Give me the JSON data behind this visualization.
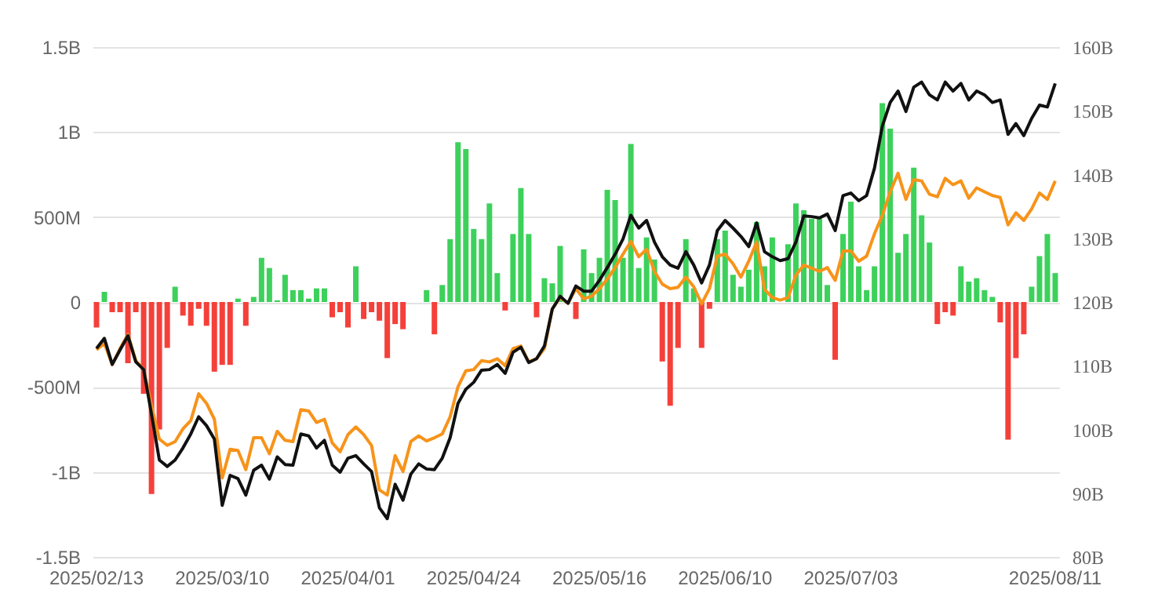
{
  "chart_data": {
    "type": "bar",
    "categories": [
      "2025/02/13",
      null,
      null,
      null,
      null,
      null,
      null,
      null,
      null,
      null,
      null,
      null,
      null,
      null,
      null,
      null,
      "2025/03/10",
      null,
      null,
      null,
      null,
      null,
      null,
      null,
      null,
      null,
      null,
      null,
      null,
      null,
      null,
      null,
      "2025/04/01",
      null,
      null,
      null,
      null,
      null,
      null,
      null,
      null,
      null,
      null,
      null,
      null,
      null,
      null,
      null,
      "2025/04/24",
      null,
      null,
      null,
      null,
      null,
      null,
      null,
      null,
      null,
      null,
      null,
      null,
      null,
      null,
      null,
      "2025/05/16",
      null,
      null,
      null,
      null,
      null,
      null,
      null,
      null,
      null,
      null,
      null,
      null,
      null,
      null,
      null,
      "2025/06/10",
      null,
      null,
      null,
      null,
      null,
      null,
      null,
      null,
      null,
      null,
      null,
      null,
      null,
      null,
      null,
      "2025/07/03",
      null,
      null,
      null,
      null,
      null,
      null,
      null,
      null,
      null,
      null,
      null,
      null,
      null,
      null,
      null,
      null,
      null,
      null,
      null,
      null,
      null,
      null,
      null,
      null,
      null,
      "2025/08/11"
    ],
    "series": [
      {
        "values": [
          -150000000.0,
          60000000.0,
          -60000000.0,
          -60000000.0,
          -360000000.0,
          -60000000.0,
          -540000000.0,
          -1130000000.0,
          -750000000.0,
          -270000000.0,
          90000000.0,
          -80000000.0,
          -140000000.0,
          -40000000.0,
          -140000000.0,
          -410000000.0,
          -370000000.0,
          -370000000.0,
          20000000.0,
          -140000000.0,
          30000000.0,
          260000000.0,
          200000000.0,
          10000000.0,
          160000000.0,
          70000000.0,
          70000000.0,
          20000000.0,
          80000000.0,
          80000000.0,
          -90000000.0,
          -60000000.0,
          -150000000.0,
          210000000.0,
          -100000000.0,
          -60000000.0,
          -110000000.0,
          -330000000.0,
          -130000000.0,
          -160000000.0,
          0,
          0,
          70000000.0,
          -190000000.0,
          100000000.0,
          370000000.0,
          940000000.0,
          900000000.0,
          430000000.0,
          370000000.0,
          580000000.0,
          170000000.0,
          -50000000.0,
          400000000.0,
          670000000.0,
          400000000.0,
          -90000000.0,
          140000000.0,
          110000000.0,
          330000000.0,
          0,
          -100000000.0,
          310000000.0,
          170000000.0,
          260000000.0,
          660000000.0,
          600000000.0,
          260000000.0,
          930000000.0,
          200000000.0,
          380000000.0,
          250000000.0,
          -350000000.0,
          -610000000.0,
          -270000000.0,
          370000000.0,
          80000000.0,
          -270000000.0,
          -40000000.0,
          370000000.0,
          420000000.0,
          160000000.0,
          90000000.0,
          190000000.0,
          470000000.0,
          210000000.0,
          380000000.0,
          0,
          340000000.0,
          580000000.0,
          540000000.0,
          490000000.0,
          490000000.0,
          100000000.0,
          -340000000.0,
          400000000.0,
          590000000.0,
          210000000.0,
          70000000.0,
          210000000.0,
          1170000000.0,
          1020000000.0,
          290000000.0,
          400000000.0,
          790000000.0,
          510000000.0,
          350000000.0,
          -130000000.0,
          -60000000.0,
          -80000000.0,
          210000000.0,
          120000000.0,
          140000000.0,
          70000000.0,
          30000000.0,
          -120000000.0,
          -810000000.0,
          -330000000.0,
          -190000000.0,
          90000000.0,
          270000000.0,
          400000000.0,
          170000000.0
        ],
        "colors": [
          "#f5403a",
          "#3dd15b",
          "#f5403a",
          "#f5403a",
          "#f5403a",
          "#f5403a",
          "#f5403a",
          "#f5403a",
          "#f5403a",
          "#f5403a",
          "#3dd15b",
          "#f5403a",
          "#f5403a",
          "#f5403a",
          "#f5403a",
          "#f5403a",
          "#f5403a",
          "#f5403a",
          "#3dd15b",
          "#f5403a",
          "#3dd15b",
          "#3dd15b",
          "#3dd15b",
          "#3dd15b",
          "#3dd15b",
          "#3dd15b",
          "#3dd15b",
          "#3dd15b",
          "#3dd15b",
          "#3dd15b",
          "#f5403a",
          "#f5403a",
          "#f5403a",
          "#3dd15b",
          "#f5403a",
          "#f5403a",
          "#f5403a",
          "#f5403a",
          "#f5403a",
          "#f5403a",
          "#3dd15b",
          "#3dd15b",
          "#3dd15b",
          "#f5403a",
          "#3dd15b",
          "#3dd15b",
          "#3dd15b",
          "#3dd15b",
          "#3dd15b",
          "#3dd15b",
          "#3dd15b",
          "#3dd15b",
          "#f5403a",
          "#3dd15b",
          "#3dd15b",
          "#3dd15b",
          "#f5403a",
          "#3dd15b",
          "#3dd15b",
          "#3dd15b",
          "#3dd15b",
          "#f5403a",
          "#3dd15b",
          "#3dd15b",
          "#3dd15b",
          "#3dd15b",
          "#3dd15b",
          "#3dd15b",
          "#3dd15b",
          "#3dd15b",
          "#3dd15b",
          "#3dd15b",
          "#f5403a",
          "#f5403a",
          "#f5403a",
          "#3dd15b",
          "#3dd15b",
          "#f5403a",
          "#f5403a",
          "#3dd15b",
          "#3dd15b",
          "#3dd15b",
          "#3dd15b",
          "#3dd15b",
          "#3dd15b",
          "#3dd15b",
          "#3dd15b",
          "#3dd15b",
          "#3dd15b",
          "#3dd15b",
          "#3dd15b",
          "#3dd15b",
          "#3dd15b",
          "#3dd15b",
          "#f5403a",
          "#3dd15b",
          "#3dd15b",
          "#3dd15b",
          "#3dd15b",
          "#3dd15b",
          "#3dd15b",
          "#3dd15b",
          "#3dd15b",
          "#3dd15b",
          "#3dd15b",
          "#3dd15b",
          "#3dd15b",
          "#f5403a",
          "#f5403a",
          "#f5403a",
          "#3dd15b",
          "#3dd15b",
          "#3dd15b",
          "#3dd15b",
          "#3dd15b",
          "#f5403a",
          "#f5403a",
          "#f5403a",
          "#f5403a",
          "#3dd15b",
          "#3dd15b",
          "#3dd15b",
          "#3dd15b"
        ]
      },
      {
        "type": "line",
        "axis": "y2",
        "color": "#f7931a",
        "values": [
          112.5,
          113.5,
          110.2,
          112.7,
          114.9,
          110.8,
          109.4,
          103.7,
          98.5,
          97.5,
          98.1,
          100.1,
          101.4,
          105.6,
          104.1,
          101.6,
          92.4,
          96.9,
          96.7,
          93.7,
          98.7,
          98.7,
          96.2,
          99.7,
          98.3,
          98.1,
          103.1,
          102.9,
          101.1,
          101.6,
          97.9,
          96.5,
          99.2,
          100.4,
          99.2,
          97.5,
          90.5,
          89.7,
          95.9,
          93.4,
          98.1,
          99.0,
          98.2,
          98.7,
          99.3,
          102.0,
          106.7,
          109.2,
          109.4,
          110.8,
          110.6,
          111.1,
          110.0,
          112.7,
          113.1,
          110.6,
          111.1,
          112.7,
          118.9,
          120.7,
          119.8,
          122.1,
          120.5,
          120.9,
          122.1,
          123.6,
          125.4,
          127.5,
          129.5,
          127.1,
          128.3,
          124.8,
          122.8,
          122.1,
          122.3,
          123.9,
          122.4,
          119.7,
          122.1,
          127.2,
          127.5,
          126.0,
          123.9,
          126.4,
          129.4,
          122.0,
          120.7,
          120.3,
          120.7,
          124.2,
          125.8,
          125.3,
          124.8,
          125.4,
          123.4,
          128.0,
          128.0,
          126.4,
          127.2,
          130.7,
          133.6,
          137.3,
          140.2,
          136.1,
          139.2,
          139.0,
          136.9,
          136.5,
          139.4,
          138.4,
          139.0,
          136.3,
          137.9,
          137.3,
          136.7,
          136.4,
          132.1,
          134.0,
          132.8,
          134.6,
          137.1,
          136.1,
          139.0
        ]
      },
      {
        "type": "line",
        "axis": "y2",
        "color": "#111111",
        "values": [
          112.7,
          114.3,
          110.2,
          112.5,
          114.7,
          110.6,
          109.4,
          102.4,
          95.2,
          94.2,
          95.2,
          97.1,
          99.3,
          102.0,
          100.6,
          98.5,
          88.1,
          92.8,
          92.3,
          89.7,
          93.6,
          94.4,
          92.2,
          95.7,
          94.5,
          94.4,
          99.3,
          99.0,
          97.1,
          98.3,
          94.4,
          93.3,
          95.5,
          95.9,
          94.6,
          93.4,
          87.7,
          86.0,
          91.4,
          88.9,
          93.0,
          94.6,
          93.8,
          93.7,
          95.5,
          98.7,
          104.1,
          106.3,
          107.4,
          109.3,
          109.4,
          110.2,
          108.8,
          112.1,
          112.9,
          110.5,
          111.1,
          113.1,
          118.9,
          120.9,
          119.8,
          122.5,
          121.7,
          121.7,
          123.4,
          125.4,
          127.5,
          129.9,
          133.6,
          131.6,
          132.8,
          129.4,
          127.1,
          125.8,
          125.3,
          127.9,
          125.8,
          123.0,
          125.8,
          131.2,
          132.8,
          131.6,
          130.3,
          128.7,
          132.4,
          127.9,
          127.1,
          126.5,
          126.8,
          129.4,
          133.5,
          133.4,
          133.2,
          133.8,
          131.2,
          136.7,
          137.1,
          135.9,
          136.7,
          141.0,
          147.6,
          151.3,
          153.1,
          149.9,
          153.7,
          154.5,
          152.5,
          151.7,
          154.5,
          153.1,
          154.3,
          151.7,
          153.1,
          152.5,
          151.3,
          151.7,
          146.3,
          148.0,
          146.1,
          148.8,
          150.9,
          150.6,
          154.3
        ]
      }
    ],
    "ylim": [
      -1500000000.0,
      1500000000.0
    ],
    "yticks": [
      {
        "value": -1500000000.0,
        "label": "-1.5B"
      },
      {
        "value": -1000000000.0,
        "label": "-1B"
      },
      {
        "value": -500000000.0,
        "label": "-500M"
      },
      0,
      {
        "value": 500000000.0,
        "label": "500M"
      },
      {
        "value": 1000000000.0,
        "label": "1B"
      },
      {
        "value": 1500000000.0,
        "label": "1.5B"
      }
    ],
    "y2lim": [
      80,
      160
    ],
    "y2ticks": [
      {
        "value": 80,
        "label": "80B"
      },
      {
        "value": 90,
        "label": "90B"
      },
      {
        "value": 100,
        "label": "100B"
      },
      {
        "value": 110,
        "label": "110B"
      },
      {
        "value": 120,
        "label": "120B"
      },
      {
        "value": 130,
        "label": "130B"
      },
      {
        "value": 140,
        "label": "140B"
      },
      {
        "value": 150,
        "label": "150B"
      },
      {
        "value": 160,
        "label": "160B"
      }
    ],
    "grid": "y"
  }
}
